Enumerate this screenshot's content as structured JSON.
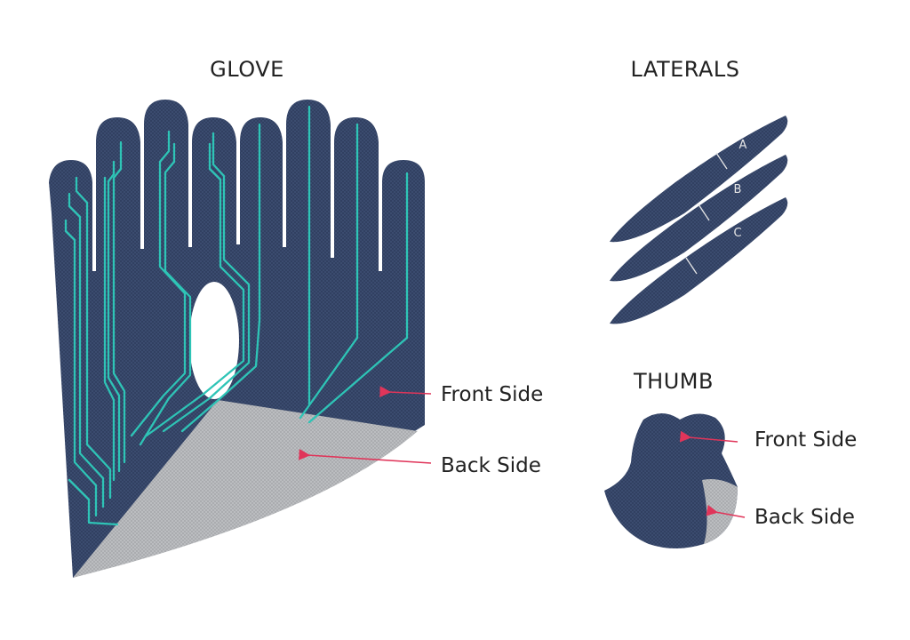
{
  "glove": {
    "title": "GLOVE",
    "front_label": "Front Side",
    "back_label": "Back Side"
  },
  "laterals": {
    "title": "LATERALS",
    "strips": [
      "A",
      "B",
      "C"
    ]
  },
  "thumb": {
    "title": "THUMB",
    "front_label": "Front Side",
    "back_label": "Back Side"
  },
  "colors": {
    "fabric_front": "#2f3e5e",
    "fabric_back": "#a7a9ac",
    "trace": "#2ec4b6",
    "arrow": "#e0355a",
    "hole": "#ffffff"
  }
}
